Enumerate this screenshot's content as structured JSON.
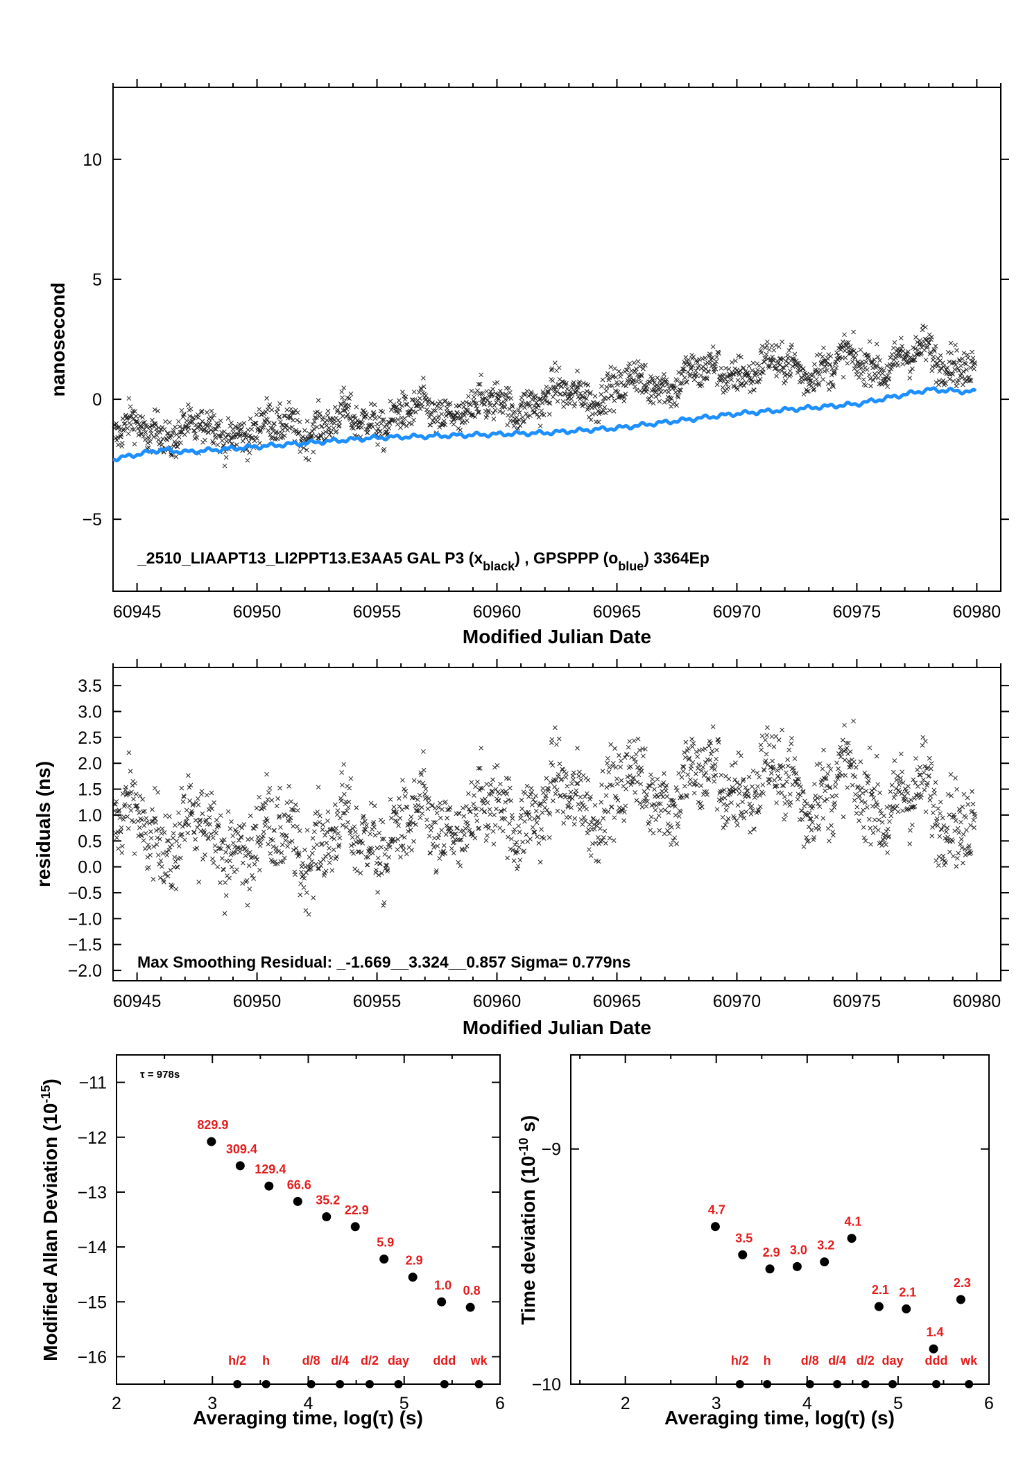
{
  "chart_data": [
    {
      "type": "scatter",
      "id": "phase",
      "xlabel": "Modified Julian Date",
      "ylabel": "nanosecond",
      "xlim": [
        60944,
        60981
      ],
      "ylim": [
        -8,
        13
      ],
      "xticks": [
        60945,
        60950,
        60955,
        60960,
        60965,
        60970,
        60975,
        60980
      ],
      "yticks": [
        -5,
        0,
        5,
        10
      ],
      "annotation": {
        "pre": "_2510_LIAAPT13_LI2PPT13.E3AA5     GAL P3 (x",
        "sub1": "black",
        "mid": ") ,  GPSPPP (o",
        "sub2": "blue",
        "post": ")  3364Ep"
      },
      "series": [
        {
          "marker": "x",
          "color": "#000000",
          "points": "3364 epochs, trend -0.9 ns (60944) to +1.6 ns (60980), scatter ±1.5 ns"
        },
        {
          "marker": "o",
          "color": "#1e8fff",
          "trend": [
            [
              60944,
              -2.5
            ],
            [
              60946,
              -2.1
            ],
            [
              60947,
              -2.2
            ],
            [
              60955,
              -1.6
            ],
            [
              60962,
              -1.4
            ],
            [
              60965,
              -1.2
            ],
            [
              60970,
              -0.6
            ],
            [
              60975,
              -0.2
            ],
            [
              60978,
              0.4
            ],
            [
              60980,
              0.3
            ]
          ]
        }
      ]
    },
    {
      "type": "scatter",
      "id": "residuals",
      "xlabel": "Modified Julian Date",
      "ylabel": "residuals (ns)",
      "xlim": [
        60944,
        60981
      ],
      "ylim": [
        -2.2,
        3.85
      ],
      "xticks": [
        60945,
        60950,
        60955,
        60960,
        60965,
        60970,
        60975,
        60980
      ],
      "yticks": [
        "3.5",
        "3.0",
        "2.5",
        "2.0",
        "1.5",
        "1.0",
        "0.5",
        "0.0",
        "-0.5",
        "-1.0",
        "-1.5",
        "-2.0"
      ],
      "annotation": "Max Smoothing Residual: _-1.669__3.324__0.857  Sigma= 0.779ns"
    },
    {
      "type": "scatter",
      "id": "mdev",
      "xlabel": "Averaging time, log(τ) (s)",
      "ylabel_pre": "Modified Allan Deviation (10",
      "ylabel_sup": "-15",
      "ylabel_post": ")",
      "tau_note": "τ = 978s",
      "xlim": [
        2,
        6
      ],
      "ylim": [
        -16.5,
        -10.5
      ],
      "xticks": [
        2,
        3,
        4,
        5,
        6
      ],
      "yticks": [
        -11,
        -12,
        -13,
        -14,
        -15,
        -16
      ],
      "points": [
        {
          "x": 2.99,
          "y": -12.08,
          "label": "829.9"
        },
        {
          "x": 3.29,
          "y": -12.52,
          "label": "309.4"
        },
        {
          "x": 3.59,
          "y": -12.89,
          "label": "129.4"
        },
        {
          "x": 3.89,
          "y": -13.17,
          "label": "66.6"
        },
        {
          "x": 4.19,
          "y": -13.45,
          "label": "35.2"
        },
        {
          "x": 4.49,
          "y": -13.63,
          "label": "22.9"
        },
        {
          "x": 4.79,
          "y": -14.22,
          "label": "5.9"
        },
        {
          "x": 5.09,
          "y": -14.55,
          "label": "2.9"
        },
        {
          "x": 5.39,
          "y": -15.0,
          "label": "1.0"
        },
        {
          "x": 5.69,
          "y": -15.1,
          "label": "0.8"
        }
      ],
      "interval_markers": [
        {
          "x": 3.26,
          "label": "h/2"
        },
        {
          "x": 3.56,
          "label": "h"
        },
        {
          "x": 4.03,
          "label": "d/8"
        },
        {
          "x": 4.33,
          "label": "d/4"
        },
        {
          "x": 4.64,
          "label": "d/2"
        },
        {
          "x": 4.94,
          "label": "day"
        },
        {
          "x": 5.42,
          "label": "ddd"
        },
        {
          "x": 5.78,
          "label": "wk"
        }
      ]
    },
    {
      "type": "scatter",
      "id": "tdev",
      "xlabel": "Averaging time, log(τ) (s)",
      "ylabel_pre": "Time deviation (10",
      "ylabel_sup": "-10",
      "ylabel_post": " s)",
      "xlim": [
        1.4,
        6
      ],
      "ylim": [
        -10,
        -8.6
      ],
      "xticks": [
        2,
        3,
        4,
        5,
        6
      ],
      "yticks": [
        -9,
        -10
      ],
      "points": [
        {
          "x": 2.99,
          "y": -9.33,
          "label": "4.7"
        },
        {
          "x": 3.29,
          "y": -9.45,
          "label": "3.5"
        },
        {
          "x": 3.59,
          "y": -9.51,
          "label": "2.9"
        },
        {
          "x": 3.89,
          "y": -9.5,
          "label": "3.0"
        },
        {
          "x": 4.19,
          "y": -9.48,
          "label": "3.2"
        },
        {
          "x": 4.49,
          "y": -9.38,
          "label": "4.1"
        },
        {
          "x": 4.79,
          "y": -9.67,
          "label": "2.1"
        },
        {
          "x": 5.09,
          "y": -9.68,
          "label": "2.1"
        },
        {
          "x": 5.39,
          "y": -9.85,
          "label": "1.4"
        },
        {
          "x": 5.69,
          "y": -9.64,
          "label": "2.3"
        }
      ],
      "interval_markers": [
        {
          "x": 3.26,
          "label": "h/2"
        },
        {
          "x": 3.56,
          "label": "h"
        },
        {
          "x": 4.03,
          "label": "d/8"
        },
        {
          "x": 4.33,
          "label": "d/4"
        },
        {
          "x": 4.64,
          "label": "d/2"
        },
        {
          "x": 4.94,
          "label": "day"
        },
        {
          "x": 5.42,
          "label": "ddd"
        },
        {
          "x": 5.78,
          "label": "wk"
        }
      ]
    }
  ]
}
